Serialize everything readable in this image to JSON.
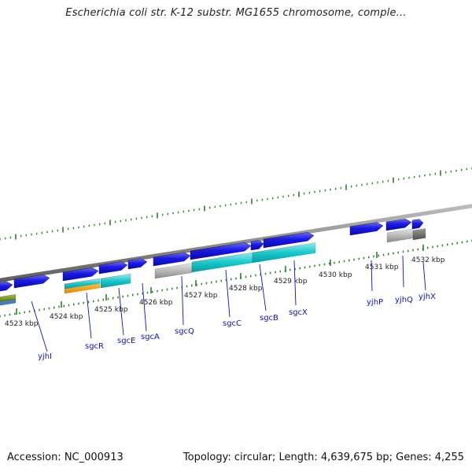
{
  "title": "Escherichia coli str. K-12 substr. MG1655 chromosome, comple...",
  "footer": {
    "accession": "Accession: NC_000913",
    "topology": "Topology: circular; Length: 4,639,675 bp; Genes: 4,255"
  },
  "colors": {
    "gene_forward": "#1a1ae6",
    "cds_cyan": "#18c8cc",
    "pseudo_grey": "#b4b4b4",
    "tick_green": "#228822",
    "backbone": "#8c8c8c",
    "label_blue": "#1010c0"
  },
  "ruler": {
    "labels": [
      "4523 kbp",
      "4524 kbp",
      "4525 kbp",
      "4526 kbp",
      "4527 kbp",
      "4528 kbp",
      "4529 kbp",
      "4530 kbp",
      "4531 kbp",
      "4532 kbp"
    ]
  },
  "genes": [
    {
      "name": "yjhI"
    },
    {
      "name": "sgcR"
    },
    {
      "name": "sgcE"
    },
    {
      "name": "sgcA"
    },
    {
      "name": "sgcQ"
    },
    {
      "name": "sgcC"
    },
    {
      "name": "sgcB"
    },
    {
      "name": "sgcX"
    },
    {
      "name": "yjhP"
    },
    {
      "name": "yjhQ"
    },
    {
      "name": "yjhX"
    }
  ]
}
